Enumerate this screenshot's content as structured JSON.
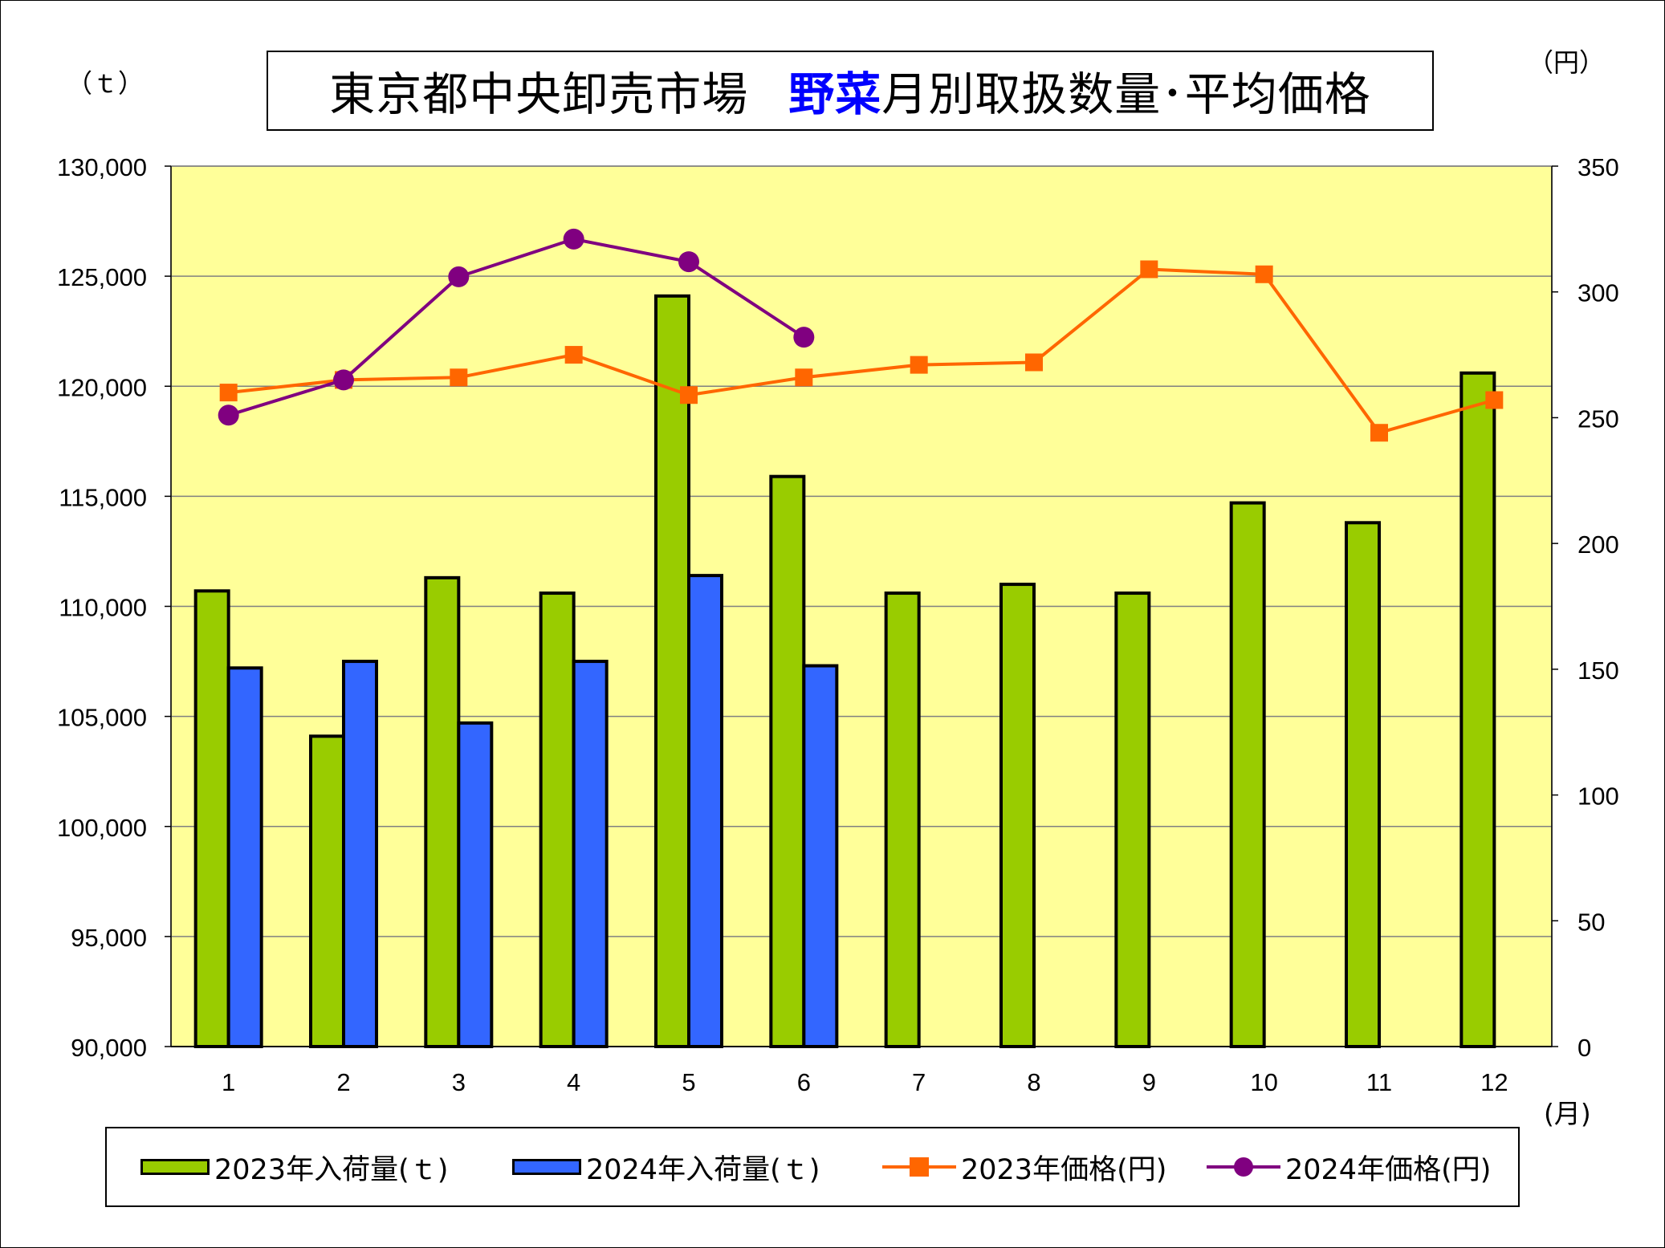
{
  "title": {
    "part1": "東京都中央卸売市場",
    "highlight": "野菜",
    "part2": "月別取扱数量･平均価格",
    "highlight_color": "#0000ff"
  },
  "units": {
    "left": "（ｔ）",
    "right": "（円）",
    "x": "(月)"
  },
  "legend": {
    "items": [
      "2023年入荷量(ｔ)",
      "2024年入荷量(ｔ)",
      "2023年価格(円)",
      "2024年価格(円)"
    ]
  },
  "chart_data": {
    "type": "bar",
    "categories": [
      "1",
      "2",
      "3",
      "4",
      "5",
      "6",
      "7",
      "8",
      "9",
      "10",
      "11",
      "12"
    ],
    "y_left": {
      "min": 90000,
      "max": 130000,
      "step": 5000,
      "tick_labels": [
        "90,000",
        "95,000",
        "100,000",
        "105,000",
        "110,000",
        "115,000",
        "120,000",
        "125,000",
        "130,000"
      ]
    },
    "y_right": {
      "min": 0,
      "max": 350,
      "step": 50,
      "tick_labels": [
        "0",
        "50",
        "100",
        "150",
        "200",
        "250",
        "300",
        "350"
      ]
    },
    "grid": true,
    "legend_position": "bottom",
    "plot_background": "#ffff99",
    "bar_series": [
      {
        "name": "2023年入荷量(ｔ)",
        "color": "#99cc00",
        "axis": "left",
        "values": [
          110700,
          104100,
          111300,
          110600,
          124100,
          115900,
          110600,
          111000,
          110600,
          114700,
          113800,
          120600
        ]
      },
      {
        "name": "2024年入荷量(ｔ)",
        "color": "#3366ff",
        "axis": "left",
        "values": [
          107200,
          107500,
          104700,
          107500,
          111400,
          107300
        ]
      }
    ],
    "line_series": [
      {
        "name": "2023年価格(円)",
        "color": "#ff6600",
        "marker": "square",
        "axis": "right",
        "values": [
          260,
          265,
          266,
          275,
          259,
          266,
          271,
          272,
          309,
          307,
          244,
          257
        ]
      },
      {
        "name": "2024年価格(円)",
        "color": "#800080",
        "marker": "circle",
        "axis": "right",
        "values": [
          251,
          265,
          306,
          321,
          312,
          282
        ]
      }
    ]
  }
}
